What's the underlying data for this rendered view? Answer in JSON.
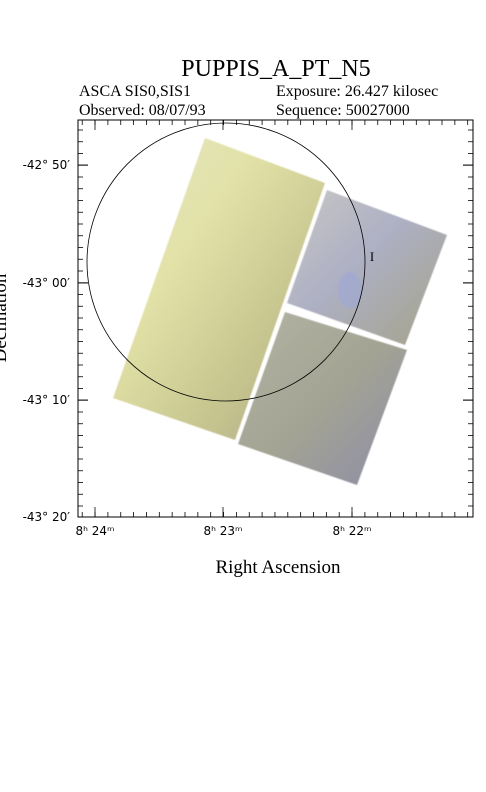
{
  "header": {
    "title": "PUPPIS_A_PT_N5",
    "instrument": "ASCA SIS0,SIS1",
    "exposure": "Exposure: 26.427 kilosec",
    "observed": "Observed: 08/07/93",
    "sequence": "Sequence: 50027000"
  },
  "axes": {
    "x_label": "Right Ascension",
    "y_label": "Declination",
    "x_ticks": [
      "8ʰ 24ᵐ",
      "8ʰ 23ᵐ",
      "8ʰ 22ᵐ"
    ],
    "y_ticks": [
      "-42° 50′",
      "-43° 00′",
      "-43° 10′",
      "-43° 20′"
    ]
  }
}
